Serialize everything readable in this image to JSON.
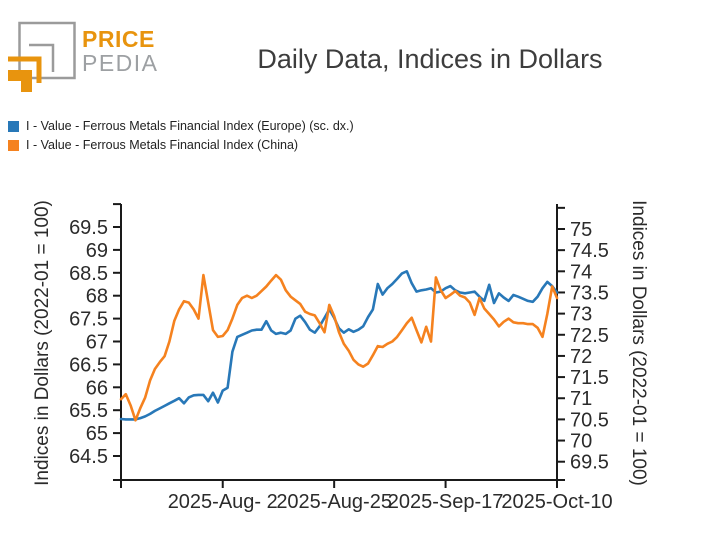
{
  "header": {
    "logo_text_top": "PRICE",
    "logo_text_bottom": "PEDIA",
    "title": "Daily Data, Indices in Dollars"
  },
  "legend": {
    "items": [
      {
        "label": "I - Value - Ferrous Metals Financial Index (Europe) (sc. dx.)",
        "color": "#2878b8"
      },
      {
        "label": "I - Value - Ferrous Metals Financial Index (China)",
        "color": "#f5821f"
      }
    ]
  },
  "chart_data": {
    "type": "line",
    "title": "Daily Data, Indices in Dollars",
    "grid": false,
    "legend_position": "top-left",
    "x_axis": {
      "start_date": "2025-07-12",
      "end_date": "2025-10-10",
      "tick_days": [
        0,
        21,
        44,
        67,
        90
      ],
      "tick_labels": [
        "",
        "2025-Aug- 2",
        "2025-Aug-25",
        "2025-Sep-17",
        "2025-Oct-10"
      ]
    },
    "left_axis": {
      "label": "Indices in Dollars (2022-01 = 100)",
      "min": 64.5,
      "max": 69.5,
      "tick_step": 0.5,
      "ticks": [
        69.5,
        69,
        68.5,
        68,
        67.5,
        67,
        66.5,
        66,
        65.5,
        65,
        64.5
      ],
      "extra_unlabeled_tick": 70
    },
    "right_axis": {
      "label": "Indices in Dollars (2022-01 = 100)",
      "min": 69.5,
      "max": 75,
      "tick_step": 0.5,
      "ticks": [
        75,
        74.5,
        74,
        73.5,
        73,
        72.5,
        72,
        71.5,
        71,
        70.5,
        70,
        69.5
      ],
      "extra_unlabeled_tick": 75.5
    },
    "series": [
      {
        "name": "I - Value - Ferrous Metals Financial Index (Europe) (sc. dx.)",
        "slug": "europe",
        "axis": "right",
        "color": "#2878b8",
        "points": [
          [
            0,
            70.51
          ],
          [
            1,
            70.5
          ],
          [
            2,
            70.5
          ],
          [
            3,
            70.5
          ],
          [
            4,
            70.53
          ],
          [
            5,
            70.57
          ],
          [
            6,
            70.63
          ],
          [
            7,
            70.7
          ],
          [
            8,
            70.76
          ],
          [
            9,
            70.82
          ],
          [
            10,
            70.88
          ],
          [
            11,
            70.94
          ],
          [
            12,
            71.0
          ],
          [
            13,
            70.88
          ],
          [
            14,
            71.02
          ],
          [
            15,
            71.07
          ],
          [
            16,
            71.08
          ],
          [
            17,
            71.08
          ],
          [
            18,
            70.93
          ],
          [
            19,
            71.13
          ],
          [
            20,
            70.9
          ],
          [
            21,
            71.18
          ],
          [
            22,
            71.25
          ],
          [
            23,
            72.1
          ],
          [
            24,
            72.45
          ],
          [
            25,
            72.5
          ],
          [
            26,
            72.55
          ],
          [
            27,
            72.6
          ],
          [
            28,
            72.62
          ],
          [
            29,
            72.62
          ],
          [
            30,
            72.82
          ],
          [
            31,
            72.6
          ],
          [
            32,
            72.52
          ],
          [
            33,
            72.55
          ],
          [
            34,
            72.52
          ],
          [
            35,
            72.6
          ],
          [
            36,
            72.88
          ],
          [
            37,
            72.95
          ],
          [
            38,
            72.8
          ],
          [
            39,
            72.62
          ],
          [
            40,
            72.55
          ],
          [
            41,
            72.7
          ],
          [
            42,
            72.9
          ],
          [
            43,
            73.1
          ],
          [
            44,
            72.9
          ],
          [
            45,
            72.65
          ],
          [
            46,
            72.55
          ],
          [
            47,
            72.63
          ],
          [
            48,
            72.57
          ],
          [
            49,
            72.62
          ],
          [
            50,
            72.7
          ],
          [
            51,
            72.92
          ],
          [
            52,
            73.1
          ],
          [
            53,
            73.7
          ],
          [
            54,
            73.45
          ],
          [
            55,
            73.6
          ],
          [
            56,
            73.7
          ],
          [
            57,
            73.82
          ],
          [
            58,
            73.95
          ],
          [
            59,
            74.0
          ],
          [
            60,
            73.72
          ],
          [
            61,
            73.52
          ],
          [
            62,
            73.55
          ],
          [
            63,
            73.57
          ],
          [
            64,
            73.6
          ],
          [
            65,
            73.5
          ],
          [
            66,
            73.52
          ],
          [
            67,
            73.6
          ],
          [
            68,
            73.65
          ],
          [
            69,
            73.55
          ],
          [
            70,
            73.5
          ],
          [
            71,
            73.48
          ],
          [
            72,
            73.5
          ],
          [
            73,
            73.52
          ],
          [
            74,
            73.4
          ],
          [
            75,
            73.3
          ],
          [
            76,
            73.68
          ],
          [
            77,
            73.25
          ],
          [
            78,
            73.48
          ],
          [
            79,
            73.38
          ],
          [
            80,
            73.3
          ],
          [
            81,
            73.44
          ],
          [
            82,
            73.4
          ],
          [
            83,
            73.35
          ],
          [
            84,
            73.3
          ],
          [
            85,
            73.28
          ],
          [
            86,
            73.4
          ],
          [
            87,
            73.6
          ],
          [
            88,
            73.75
          ],
          [
            89,
            73.65
          ],
          [
            90,
            73.5
          ]
        ]
      },
      {
        "name": "I - Value - Ferrous Metals Financial Index (China)",
        "slug": "china",
        "axis": "left",
        "color": "#f5821f",
        "points": [
          [
            0,
            65.74
          ],
          [
            1,
            65.85
          ],
          [
            2,
            65.6
          ],
          [
            3,
            65.28
          ],
          [
            4,
            65.55
          ],
          [
            5,
            65.78
          ],
          [
            6,
            66.15
          ],
          [
            7,
            66.4
          ],
          [
            8,
            66.55
          ],
          [
            9,
            66.68
          ],
          [
            10,
            67.0
          ],
          [
            11,
            67.45
          ],
          [
            12,
            67.7
          ],
          [
            13,
            67.88
          ],
          [
            14,
            67.85
          ],
          [
            15,
            67.7
          ],
          [
            16,
            67.5
          ],
          [
            17,
            68.45
          ],
          [
            18,
            67.85
          ],
          [
            19,
            67.25
          ],
          [
            20,
            67.1
          ],
          [
            21,
            67.12
          ],
          [
            22,
            67.25
          ],
          [
            23,
            67.5
          ],
          [
            24,
            67.8
          ],
          [
            25,
            67.95
          ],
          [
            26,
            68.0
          ],
          [
            27,
            67.95
          ],
          [
            28,
            68.0
          ],
          [
            29,
            68.1
          ],
          [
            30,
            68.2
          ],
          [
            31,
            68.33
          ],
          [
            32,
            68.45
          ],
          [
            33,
            68.35
          ],
          [
            34,
            68.12
          ],
          [
            35,
            67.98
          ],
          [
            36,
            67.9
          ],
          [
            37,
            67.82
          ],
          [
            38,
            67.65
          ],
          [
            39,
            67.6
          ],
          [
            40,
            67.57
          ],
          [
            41,
            67.4
          ],
          [
            42,
            67.2
          ],
          [
            43,
            67.8
          ],
          [
            44,
            67.55
          ],
          [
            45,
            67.2
          ],
          [
            46,
            66.95
          ],
          [
            47,
            66.8
          ],
          [
            48,
            66.6
          ],
          [
            49,
            66.5
          ],
          [
            50,
            66.45
          ],
          [
            51,
            66.52
          ],
          [
            52,
            66.7
          ],
          [
            53,
            66.9
          ],
          [
            54,
            66.88
          ],
          [
            55,
            66.95
          ],
          [
            56,
            67.0
          ],
          [
            57,
            67.1
          ],
          [
            58,
            67.25
          ],
          [
            59,
            67.4
          ],
          [
            60,
            67.52
          ],
          [
            61,
            67.25
          ],
          [
            62,
            66.98
          ],
          [
            63,
            67.32
          ],
          [
            64,
            67.0
          ],
          [
            65,
            68.4
          ],
          [
            66,
            68.12
          ],
          [
            67,
            67.95
          ],
          [
            68,
            68.02
          ],
          [
            69,
            68.1
          ],
          [
            70,
            68.0
          ],
          [
            71,
            67.96
          ],
          [
            72,
            67.85
          ],
          [
            73,
            67.58
          ],
          [
            74,
            67.95
          ],
          [
            75,
            67.72
          ],
          [
            76,
            67.6
          ],
          [
            77,
            67.48
          ],
          [
            78,
            67.33
          ],
          [
            79,
            67.43
          ],
          [
            80,
            67.5
          ],
          [
            81,
            67.42
          ],
          [
            82,
            67.4
          ],
          [
            83,
            67.4
          ],
          [
            84,
            67.38
          ],
          [
            85,
            67.38
          ],
          [
            86,
            67.3
          ],
          [
            87,
            67.1
          ],
          [
            88,
            67.6
          ],
          [
            89,
            68.2
          ],
          [
            90,
            67.95
          ]
        ]
      }
    ]
  }
}
